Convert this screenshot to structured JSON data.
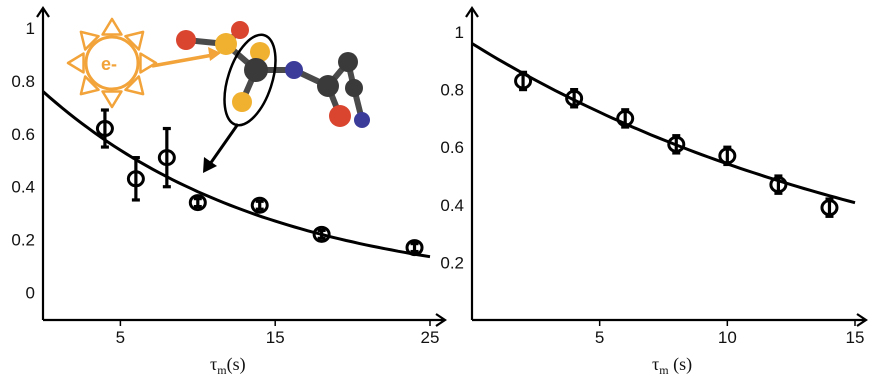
{
  "chart_data": [
    {
      "type": "scatter",
      "xlabel": "τm(s)",
      "xlabel_main": "τ",
      "xlabel_sub": "m",
      "xlabel_unit": "(s)",
      "xlim": [
        0,
        25
      ],
      "ylim": [
        -0.1,
        1.0
      ],
      "x_ticks": [
        5,
        15,
        25
      ],
      "y_ticks": [
        0,
        0.2,
        0.4,
        0.6,
        0.8,
        1
      ],
      "x_tick_labels": [
        "5",
        "15",
        "25"
      ],
      "y_tick_labels": [
        "0",
        "0.2",
        "0.4",
        "0.6",
        "0.8",
        "1"
      ],
      "points": [
        {
          "x": 4,
          "y": 0.62,
          "err": 0.07
        },
        {
          "x": 6,
          "y": 0.43,
          "err": 0.08
        },
        {
          "x": 8,
          "y": 0.51,
          "err": 0.11
        },
        {
          "x": 10,
          "y": 0.34,
          "err": 0.015
        },
        {
          "x": 14,
          "y": 0.33,
          "err": 0.015
        },
        {
          "x": 18,
          "y": 0.22,
          "err": 0.015
        },
        {
          "x": 24,
          "y": 0.17,
          "err": 0.015
        }
      ],
      "fit": {
        "x0": 0,
        "x1": 25,
        "a": 0.76,
        "tau": 14.5
      },
      "inset": {
        "sun_text": "e-",
        "sun_color": "#f2a33a",
        "arrow_color": "#f2a33a",
        "atom_colors": {
          "oxygen": "#d9452f",
          "sulfur": "#f0b030",
          "carbon": "#3a3a3a",
          "nitrogen": "#3b3b9a"
        }
      }
    },
    {
      "type": "scatter",
      "xlabel": "τm (s)",
      "xlabel_main": "τ",
      "xlabel_sub": "m",
      "xlabel_unit": " (s)",
      "xlim": [
        0,
        15
      ],
      "ylim": [
        0.0,
        1.0
      ],
      "x_ticks": [
        5,
        10,
        15
      ],
      "y_ticks": [
        0.2,
        0.4,
        0.6,
        0.8,
        1
      ],
      "x_tick_labels": [
        "5",
        "10",
        "15"
      ],
      "y_tick_labels": [
        "0.2",
        "0.4",
        "0.6",
        "0.8",
        "1"
      ],
      "points": [
        {
          "x": 2,
          "y": 0.83,
          "err": 0.03
        },
        {
          "x": 4,
          "y": 0.77,
          "err": 0.03
        },
        {
          "x": 6,
          "y": 0.7,
          "err": 0.03
        },
        {
          "x": 8,
          "y": 0.61,
          "err": 0.03
        },
        {
          "x": 10,
          "y": 0.57,
          "err": 0.03
        },
        {
          "x": 12,
          "y": 0.47,
          "err": 0.03
        },
        {
          "x": 14,
          "y": 0.39,
          "err": 0.03
        }
      ],
      "fit": {
        "x0": 0,
        "x1": 15,
        "a": 0.96,
        "tau": 17.5
      }
    }
  ]
}
